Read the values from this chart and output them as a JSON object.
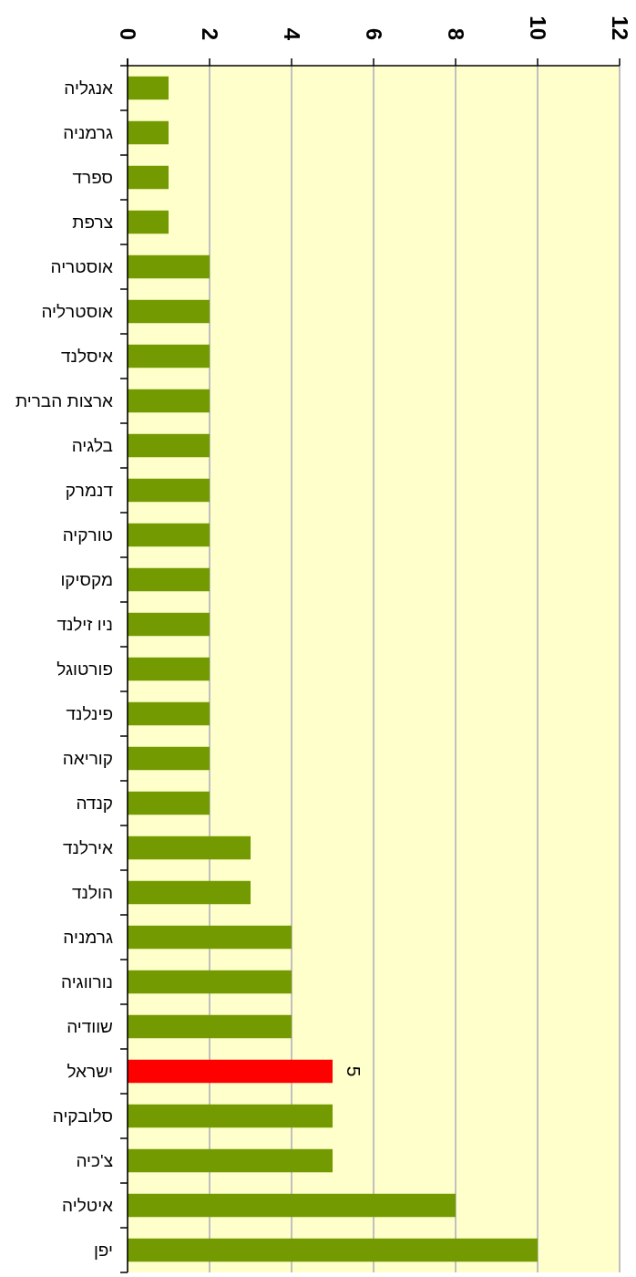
{
  "chart_data": {
    "type": "bar",
    "orientation": "horizontal",
    "categories": [
      "אנגליה",
      "גרמניה",
      "ספרד",
      "צרפת",
      "אוסטריה",
      "אוסטרליה",
      "איסלנד",
      "ארצות הברית",
      "בלגיה",
      "דנמרק",
      "טורקיה",
      "מקסיקו",
      "ניו זילנד",
      "פורטוגל",
      "פינלנד",
      "קוריאה",
      "קנדה",
      "אירלנד",
      "הולנד",
      "גרמניה",
      "נורווגיה",
      "שוודיה",
      "ישראל",
      "סלובקיה",
      "צ'כיה",
      "איטליה",
      "יפן"
    ],
    "values": [
      1,
      1,
      1,
      1,
      2,
      2,
      2,
      2,
      2,
      2,
      2,
      2,
      2,
      2,
      2,
      2,
      2,
      3,
      3,
      4,
      4,
      4,
      5,
      5,
      5,
      8,
      10
    ],
    "colors": [
      "#739a00",
      "#739a00",
      "#739a00",
      "#739a00",
      "#739a00",
      "#739a00",
      "#739a00",
      "#739a00",
      "#739a00",
      "#739a00",
      "#739a00",
      "#739a00",
      "#739a00",
      "#739a00",
      "#739a00",
      "#739a00",
      "#739a00",
      "#739a00",
      "#739a00",
      "#739a00",
      "#739a00",
      "#739a00",
      "#ff0000",
      "#739a00",
      "#739a00",
      "#739a00",
      "#739a00"
    ],
    "value_labels": [
      null,
      null,
      null,
      null,
      null,
      null,
      null,
      null,
      null,
      null,
      null,
      null,
      null,
      null,
      null,
      null,
      null,
      null,
      null,
      null,
      null,
      null,
      "5",
      null,
      null,
      null,
      null
    ],
    "xlim": [
      0,
      12
    ],
    "xticks": [
      0,
      2,
      4,
      6,
      8,
      10,
      12
    ],
    "grid": "x"
  }
}
